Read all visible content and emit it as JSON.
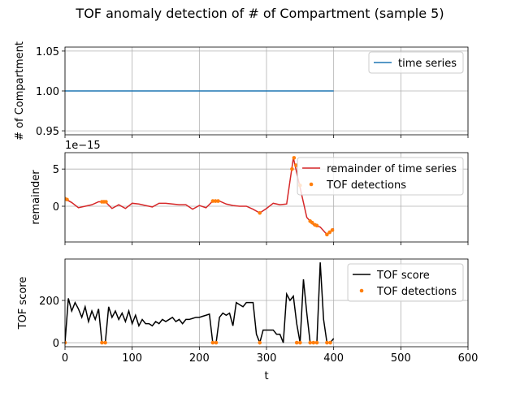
{
  "title": "TOF anomaly detection of # of Compartment (sample 5)",
  "chart_data": [
    {
      "type": "line",
      "ylabel": "# of Compartment",
      "xlim": [
        0,
        600
      ],
      "xticks": [
        0,
        100,
        200,
        300,
        400,
        500,
        600
      ],
      "show_xticklabels": false,
      "ylim": [
        0.945,
        1.055
      ],
      "yticks": [
        {
          "value": 0.95,
          "label": "0.95"
        },
        {
          "value": 1.0,
          "label": "1.00"
        },
        {
          "value": 1.05,
          "label": "1.05"
        }
      ],
      "grid": true,
      "legend": "upper right",
      "series": [
        {
          "type": "line",
          "name": "time series",
          "color": "#1f77b4",
          "x": [
            0,
            400
          ],
          "values": [
            1.0,
            1.0
          ]
        }
      ]
    },
    {
      "type": "line",
      "ylabel": "remainder",
      "y_offset_label": "1e−15",
      "xlim": [
        0,
        600
      ],
      "xticks": [
        0,
        100,
        200,
        300,
        400,
        500,
        600
      ],
      "show_xticklabels": false,
      "ylim": [
        -4.8,
        7.2
      ],
      "yticks": [
        0,
        5
      ],
      "grid": true,
      "legend": "upper right",
      "series": [
        {
          "type": "line",
          "name": "remainder of time series",
          "color": "#d62728",
          "x": [
            0,
            10,
            20,
            30,
            40,
            50,
            60,
            70,
            80,
            90,
            100,
            110,
            120,
            130,
            140,
            150,
            160,
            170,
            180,
            190,
            200,
            210,
            220,
            230,
            240,
            250,
            260,
            270,
            280,
            290,
            300,
            310,
            320,
            330,
            340,
            350,
            360,
            370,
            380,
            390,
            400
          ],
          "values": [
            1.0,
            0.5,
            -0.2,
            0.0,
            0.2,
            0.6,
            0.6,
            -0.3,
            0.2,
            -0.3,
            0.4,
            0.3,
            0.1,
            -0.1,
            0.4,
            0.4,
            0.3,
            0.2,
            0.2,
            -0.4,
            0.1,
            -0.2,
            0.7,
            0.7,
            0.3,
            0.1,
            0.0,
            0.0,
            -0.4,
            -0.9,
            -0.3,
            0.4,
            0.2,
            0.3,
            6.5,
            2.5,
            -1.5,
            -2.5,
            -2.8,
            -3.8,
            -3.0
          ]
        },
        {
          "type": "scatter",
          "name": "TOF detections",
          "color": "#ff7f0e",
          "x": [
            0,
            3,
            55,
            58,
            61,
            220,
            224,
            228,
            290,
            338,
            341,
            344,
            350,
            365,
            368,
            372,
            375,
            390,
            394,
            398
          ],
          "values": [
            1.0,
            0.9,
            0.6,
            0.6,
            0.6,
            0.7,
            0.7,
            0.7,
            -0.9,
            5.0,
            6.5,
            5.5,
            2.8,
            -2.0,
            -2.2,
            -2.5,
            -2.6,
            -3.8,
            -3.5,
            -3.2
          ]
        }
      ]
    },
    {
      "type": "line",
      "ylabel": "TOF score",
      "xlabel": "t",
      "xlim": [
        0,
        600
      ],
      "xticks": [
        0,
        100,
        200,
        300,
        400,
        500,
        600
      ],
      "show_xticklabels": true,
      "ylim": [
        -19,
        396
      ],
      "yticks": [
        0,
        200
      ],
      "grid": true,
      "legend": "upper right",
      "series": [
        {
          "type": "line",
          "name": "TOF score",
          "color": "#000000",
          "x": [
            0,
            5,
            10,
            15,
            20,
            25,
            30,
            35,
            40,
            45,
            50,
            55,
            60,
            65,
            70,
            75,
            80,
            85,
            90,
            95,
            100,
            105,
            110,
            115,
            120,
            125,
            130,
            135,
            140,
            145,
            150,
            155,
            160,
            165,
            170,
            175,
            180,
            185,
            190,
            195,
            200,
            205,
            210,
            215,
            220,
            225,
            230,
            235,
            240,
            245,
            250,
            255,
            260,
            265,
            270,
            275,
            280,
            285,
            290,
            295,
            300,
            305,
            310,
            315,
            320,
            325,
            330,
            335,
            340,
            345,
            350,
            355,
            360,
            365,
            370,
            375,
            380,
            385,
            390,
            395,
            400
          ],
          "values": [
            0,
            210,
            150,
            190,
            160,
            120,
            170,
            100,
            150,
            110,
            160,
            0,
            0,
            170,
            120,
            150,
            110,
            140,
            100,
            150,
            90,
            130,
            80,
            110,
            90,
            90,
            80,
            100,
            90,
            110,
            100,
            110,
            120,
            100,
            110,
            90,
            110,
            110,
            115,
            120,
            120,
            125,
            130,
            135,
            0,
            0,
            120,
            140,
            130,
            140,
            80,
            190,
            180,
            170,
            190,
            190,
            190,
            40,
            0,
            60,
            60,
            60,
            60,
            40,
            40,
            0,
            230,
            200,
            220,
            90,
            0,
            300,
            140,
            0,
            0,
            0,
            380,
            110,
            0,
            0,
            20
          ]
        },
        {
          "type": "scatter",
          "name": "TOF detections",
          "color": "#ff7f0e",
          "x": [
            0,
            55,
            60,
            220,
            225,
            290,
            345,
            350,
            365,
            370,
            375,
            390,
            395
          ],
          "values": [
            0,
            0,
            0,
            0,
            0,
            0,
            0,
            0,
            0,
            0,
            0,
            0,
            0
          ]
        }
      ]
    }
  ]
}
